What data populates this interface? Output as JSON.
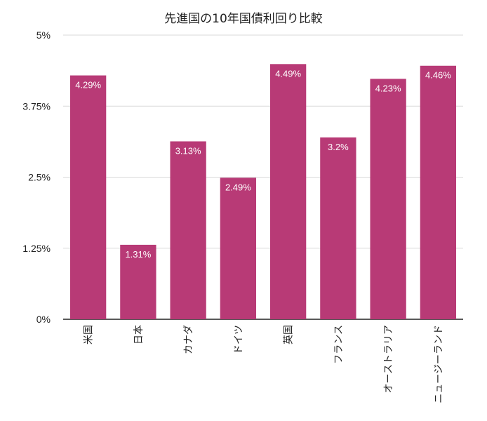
{
  "chart_data": {
    "type": "bar",
    "title": "先進国の10年国債利回り比較",
    "xlabel": "",
    "ylabel": "",
    "categories": [
      "米国",
      "日本",
      "カナダ",
      "ドイツ",
      "英国",
      "フランス",
      "オーストラリア",
      "ニュージーランド"
    ],
    "values": [
      4.29,
      1.31,
      3.13,
      2.49,
      4.49,
      3.2,
      4.23,
      4.46
    ],
    "data_labels": [
      "4.29%",
      "1.31%",
      "3.13%",
      "2.49%",
      "4.49%",
      "3.2%",
      "4.23%",
      "4.46%"
    ],
    "ylim": [
      0,
      5
    ],
    "yticks": [
      0,
      1.25,
      2.5,
      3.75,
      5
    ],
    "ytick_labels": [
      "0%",
      "1.25%",
      "2.5%",
      "3.75%",
      "5%"
    ],
    "grid": true,
    "legend": "none",
    "colors": {
      "bar": "#B83A76",
      "grid": "#D9D9D9",
      "axis": "#222222",
      "text": "#222222",
      "label_text": "#FFFFFF"
    }
  }
}
